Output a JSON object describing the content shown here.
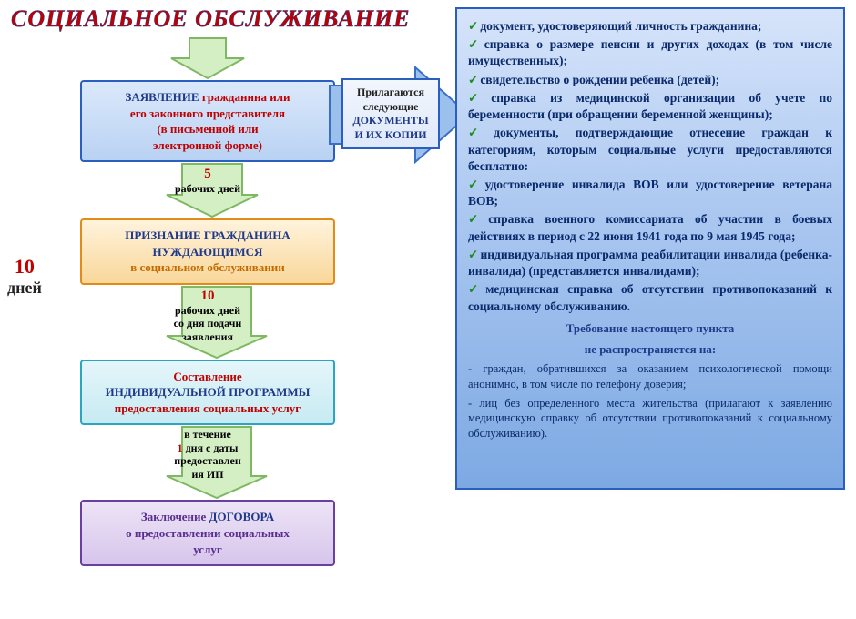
{
  "title": "СОЦИАЛЬНОЕ ОБСЛУЖИВАНИЕ",
  "sideLabel": {
    "num": "10",
    "unit": "дней"
  },
  "arrows": {
    "a1": {
      "fill": "#d5efc4",
      "stroke": "#7fb862"
    },
    "a2": {
      "fill": "#d5efc4",
      "stroke": "#7fb862",
      "line1_num": "5",
      "line2": "рабочих дней"
    },
    "a3": {
      "fill": "#d5efc4",
      "stroke": "#7fb862",
      "line1_num": "10",
      "line2": "рабочих дней",
      "line3": "со дня подачи",
      "line4": "заявления"
    },
    "a4": {
      "fill": "#d5efc4",
      "stroke": "#7fb862",
      "line1": "в течение",
      "line2_pre": "",
      "line2_num": "1",
      "line2_post": " дня с даты",
      "line3": "предоставлен",
      "line4": "ия ИП"
    },
    "big": {
      "fill": "#9cc0ec",
      "stroke": "#3a6fc7"
    }
  },
  "box1": {
    "l1a": "ЗАЯВЛЕНИЕ ",
    "l1b": "гражданина или",
    "l2": "его законного представителя",
    "l3": "(в письменной или",
    "l4": "электронной форме)"
  },
  "box2": {
    "l1": "ПРИЗНАНИЕ ГРАЖДАНИНА",
    "l2": "НУЖДАЮЩИМСЯ",
    "l3": "в социальном обслуживании"
  },
  "box3": {
    "l1": "Составление",
    "l2": "ИНДИВИДУАЛЬНОЙ ПРОГРАММЫ",
    "l3": "предоставления социальных услуг"
  },
  "box4": {
    "l1a": "Заключение ",
    "l1b": "ДОГОВОРА",
    "l2": "о предоставлении социальных",
    "l3": "услуг"
  },
  "docs": {
    "l1": "Прилагаются",
    "l2": "следующие",
    "l3": "ДОКУМЕНТЫ",
    "l4": "И ИХ КОПИИ"
  },
  "panel": {
    "items": [
      "документ, удостоверяющий личность гражданина;",
      "справка о размере пенсии и других доходах (в том числе имущественных);",
      "свидетельство о рождении ребенка (детей);",
      "справка из медицинской организации об учете по беременности (при обращении беременной женщины);",
      "документы, подтверждающие отнесение граждан к категориям, которым социальные услуги предоставляются бесплатно:",
      "удостоверение инвалида ВОВ или удостоверение ветерана ВОВ;",
      "справка военного комиссариата об участии в боевых действиях в период с 22 июня 1941 года по 9 мая 1945 года;",
      "индивидуальная программа реабилитации инвалида (ребенка-инвалида) (представляется инвалидами);",
      "медицинская справка об отсутствии противопоказаний к социальному обслуживанию."
    ],
    "subhead1": "Требование настоящего пункта",
    "subhead2": "не распространяется на:",
    "notes": [
      "- граждан, обратившихся за оказанием психологической помощи анонимно, в том числе по телефону доверия;",
      "- лиц без определенного места жительства (прилагают к заявлению медицинскую справку об отсутствии противопоказаний к социальному обслуживанию)."
    ]
  },
  "colors": {
    "title": "#c00000",
    "blue": "#1f3a8a",
    "orange": "#c46a00",
    "purple": "#5a2d91",
    "check": "#1d8a1d"
  }
}
